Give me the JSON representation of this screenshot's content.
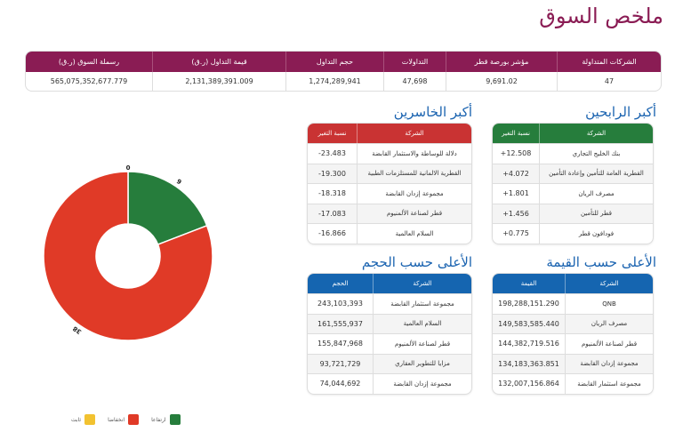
{
  "page_title": "ملخص السوق",
  "summary": {
    "headers": [
      "الشركات المتداولة",
      "مؤشر بورصة قطر",
      "التداولات",
      "حجم التداول",
      "قيمة التداول (ر.ق)",
      "رسملة السوق (ر.ق)"
    ],
    "values": [
      "47",
      "9,691.02",
      "47,698",
      "1,274,289,941",
      "2,131,389,391.009",
      "565,075,352,677.779"
    ]
  },
  "gainers": {
    "title": "أكبر الرابحين",
    "headers": [
      "الشركة",
      "نسبة التغير"
    ],
    "rows": [
      {
        "name": "بنك الخليج التجاري",
        "value": "+12.508"
      },
      {
        "name": "القطرية العامة للتأمين وإعادة التأمين",
        "value": "+4.072"
      },
      {
        "name": "مصرف الريان",
        "value": "+1.801"
      },
      {
        "name": "قطر للتأمين",
        "value": "+1.456"
      },
      {
        "name": "فودافون قطر",
        "value": "+0.775"
      }
    ]
  },
  "losers": {
    "title": "أكبر الخاسرين",
    "headers": [
      "الشركة",
      "نسبة التغير"
    ],
    "rows": [
      {
        "name": "دلالة للوساطة والاستثمار القابضة",
        "value": "-23.483"
      },
      {
        "name": "القطرية الالمانية للمستلزمات الطبية",
        "value": "-19.300"
      },
      {
        "name": "مجموعة إزدان القابضة",
        "value": "-18.318"
      },
      {
        "name": "قطر لصناعة الألمنيوم",
        "value": "-17.083"
      },
      {
        "name": "السلام العالمية",
        "value": "-16.866"
      }
    ]
  },
  "top_value": {
    "title": "الأعلى حسب القيمة",
    "headers": [
      "الشركة",
      "القيمة"
    ],
    "rows": [
      {
        "name": "QNB",
        "value": "198,288,151.290"
      },
      {
        "name": "مصرف الريان",
        "value": "149,583,585.440"
      },
      {
        "name": "قطر لصناعة الألمنيوم",
        "value": "144,382,719.516"
      },
      {
        "name": "مجموعة إزدان القابضة",
        "value": "134,183,363.851"
      },
      {
        "name": "مجموعة استثمار القابضة",
        "value": "132,007,156.864"
      }
    ]
  },
  "top_volume": {
    "title": "الأعلى حسب الحجم",
    "headers": [
      "الشركة",
      "الحجم"
    ],
    "rows": [
      {
        "name": "مجموعة استثمار القابضة",
        "value": "243,103,393"
      },
      {
        "name": "السلام العالمية",
        "value": "161,555,937"
      },
      {
        "name": "قطر لصناعة الألمنيوم",
        "value": "155,847,968"
      },
      {
        "name": "مزايا للتطوير العقاري",
        "value": "93,721,729"
      },
      {
        "name": "مجموعة إزدان القابضة",
        "value": "74,044,692"
      }
    ]
  },
  "colors": {
    "brand": "#8a1c54",
    "green": "#267d3c",
    "red": "#c93333",
    "blue": "#1565b0",
    "up": "#267d3c",
    "down": "#e03a27",
    "flat": "#f2c230"
  },
  "chart_data": {
    "type": "pie",
    "donut": true,
    "categories": [
      "ارتفاعا",
      "انخفاضا",
      "ثابت"
    ],
    "values": [
      9,
      38,
      0
    ],
    "colors": [
      "#267d3c",
      "#e03a27",
      "#f2c230"
    ],
    "legend": "bottom"
  }
}
